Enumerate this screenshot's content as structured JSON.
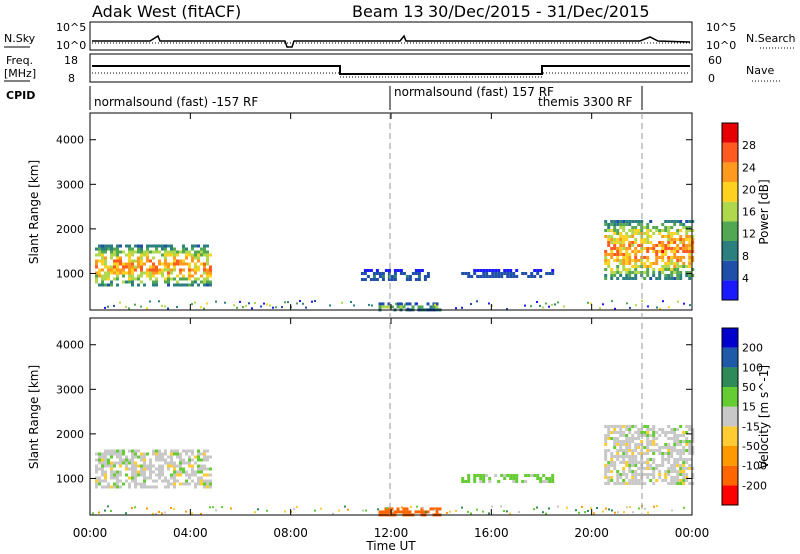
{
  "header": {
    "radar": "Adak West (fitACF)",
    "beam": "Beam 13",
    "date_range": "30/Dec/2015 - 31/Dec/2015"
  },
  "noise_panel": {
    "left_label": "N.Sky",
    "right_label": "N.Search",
    "left_ticks": [
      "10^5",
      "10^0"
    ],
    "right_ticks": [
      "10^5",
      "10^0"
    ]
  },
  "freq_panel": {
    "left_label_1": "Freq.",
    "left_label_2": "[MHz]",
    "right_label": "Nave",
    "left_ticks": [
      "18",
      "8"
    ],
    "right_ticks": [
      "60",
      "0"
    ]
  },
  "cpid_panel": {
    "label": "CPID",
    "segments": [
      "normalsound (fast) -157 RF",
      "normalsound (fast) 157 RF",
      "themis 3300 RF"
    ]
  },
  "colors": {
    "power": [
      "#1a1aff",
      "#1f4fa8",
      "#2c7f7f",
      "#52a852",
      "#b0d84c",
      "#ffd21f",
      "#ff9a1f",
      "#ff5a1f",
      "#e60000"
    ],
    "velocity": [
      "#ff0000",
      "#ff6600",
      "#ff9900",
      "#ffcc33",
      "#c8c8c8",
      "#66cc33",
      "#2e8b57",
      "#1f5aa8",
      "#0000cc"
    ]
  },
  "chart_data": [
    {
      "type": "heatmap",
      "name": "power",
      "xlabel": "Time UT",
      "ylabel": "Slant Range [km]",
      "xticks": [
        "00:00",
        "04:00",
        "08:00",
        "12:00",
        "16:00",
        "20:00",
        "00:00"
      ],
      "yticks": [
        "1000",
        "2000",
        "3000",
        "4000"
      ],
      "ylim": [
        180,
        4600
      ],
      "xlim_hours": [
        0,
        24
      ],
      "colorbar_label": "Power [dB]",
      "colorbar_ticks": [
        "4",
        "8",
        "12",
        "16",
        "20",
        "24",
        "28"
      ],
      "colorbar_range": [
        0,
        30
      ],
      "echo_regions": [
        {
          "t0": 0.2,
          "t1": 4.8,
          "r0": 750,
          "r1": 1650,
          "peak": 26
        },
        {
          "t0": 20.5,
          "t1": 24.0,
          "r0": 900,
          "r1": 2200,
          "peak": 27
        },
        {
          "t0": 10.8,
          "t1": 13.5,
          "r0": 850,
          "r1": 1100,
          "peak": 8
        },
        {
          "t0": 14.8,
          "t1": 18.5,
          "r0": 900,
          "r1": 1100,
          "peak": 6
        },
        {
          "t0": 11.5,
          "t1": 14.0,
          "r0": 200,
          "r1": 350,
          "peak": 16
        }
      ]
    },
    {
      "type": "heatmap",
      "name": "velocity",
      "xlabel": "Time UT",
      "ylabel": "Slant Range [km]",
      "xticks": [
        "00:00",
        "04:00",
        "08:00",
        "12:00",
        "16:00",
        "20:00",
        "00:00"
      ],
      "yticks": [
        "1000",
        "2000",
        "3000",
        "4000"
      ],
      "ylim": [
        180,
        4600
      ],
      "xlim_hours": [
        0,
        24
      ],
      "colorbar_label": "Velocity [m s^-1]",
      "colorbar_ticks": [
        "200",
        "100",
        "50",
        "15",
        "-15",
        "-50",
        "-100",
        "-200"
      ],
      "colorbar_range": [
        -250,
        250
      ],
      "echo_regions": [
        {
          "t0": 0.2,
          "t1": 4.8,
          "r0": 800,
          "r1": 1650,
          "vel": 0
        },
        {
          "t0": 20.5,
          "t1": 24.0,
          "r0": 900,
          "r1": 2200,
          "vel": 0
        },
        {
          "t0": 11.5,
          "t1": 14.0,
          "r0": 200,
          "r1": 350,
          "vel": -150
        },
        {
          "t0": 14.8,
          "t1": 18.5,
          "r0": 900,
          "r1": 1100,
          "vel": 30
        }
      ]
    }
  ]
}
